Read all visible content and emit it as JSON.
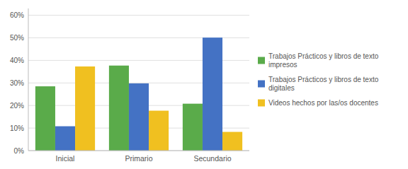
{
  "chart_data": {
    "type": "bar",
    "categories": [
      "Inicial",
      "Primario",
      "Secundario"
    ],
    "series": [
      {
        "name": "Trabajos Prácticos y libros de texto\nimpresos",
        "color": "#5aab4a",
        "values": [
          0.285,
          0.377,
          0.208
        ]
      },
      {
        "name": "Trabajos Prácticos y libros de texto\ndigitales",
        "color": "#4472c4",
        "values": [
          0.108,
          0.298,
          0.501
        ]
      },
      {
        "name": "Videos hechos por las/os docentes",
        "color": "#f0c020",
        "values": [
          0.373,
          0.177,
          0.083
        ]
      }
    ],
    "ylim": [
      0,
      0.63
    ],
    "yticks": [
      {
        "value": 0.0,
        "label": "0%"
      },
      {
        "value": 0.1,
        "label": "10%"
      },
      {
        "value": 0.2,
        "label": "20%"
      },
      {
        "value": 0.3,
        "label": "30%"
      },
      {
        "value": 0.4,
        "label": "40%"
      },
      {
        "value": 0.5,
        "label": "50%"
      },
      {
        "value": 0.6,
        "label": "60%"
      }
    ],
    "grid": true,
    "legend": "right"
  }
}
